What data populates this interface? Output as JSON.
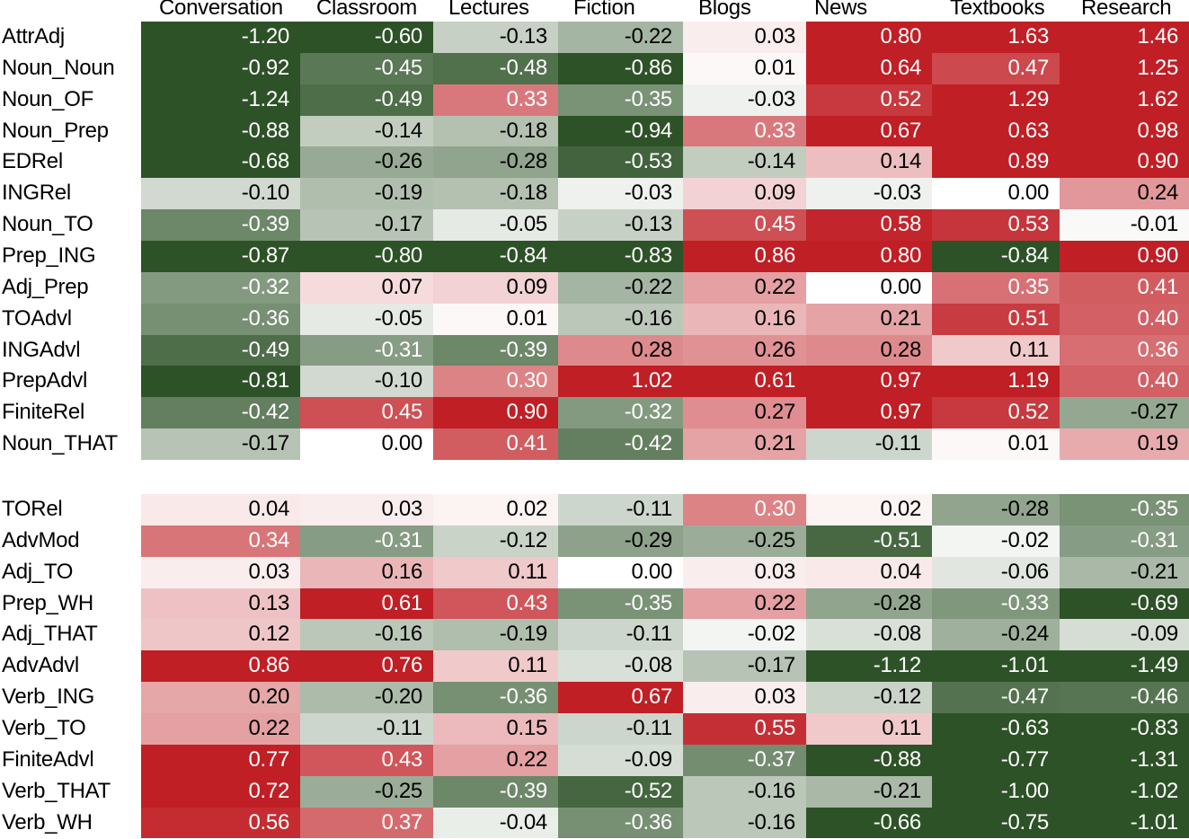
{
  "chart_data": {
    "type": "heatmap",
    "title": "",
    "xlabel": "",
    "ylabel": "",
    "columns": [
      "Conversation",
      "Classroom",
      "Lectures",
      "Fiction",
      "Blogs",
      "News",
      "Textbooks",
      "Research"
    ],
    "color_scale": {
      "negative": "#2d5227",
      "zero": "#ffffff",
      "positive": "#c01f25",
      "saturation": 0.6
    },
    "groups": [
      {
        "rows": [
          {
            "label": "AttrAdj",
            "values": [
              -1.2,
              -0.6,
              -0.13,
              -0.22,
              0.03,
              0.8,
              1.63,
              1.46
            ]
          },
          {
            "label": "Noun_Noun",
            "values": [
              -0.92,
              -0.45,
              -0.48,
              -0.86,
              0.01,
              0.64,
              0.47,
              1.25
            ]
          },
          {
            "label": "Noun_OF",
            "values": [
              -1.24,
              -0.49,
              0.33,
              -0.35,
              -0.03,
              0.52,
              1.29,
              1.62
            ]
          },
          {
            "label": "Noun_Prep",
            "values": [
              -0.88,
              -0.14,
              -0.18,
              -0.94,
              0.33,
              0.67,
              0.63,
              0.98
            ]
          },
          {
            "label": "EDRel",
            "values": [
              -0.68,
              -0.26,
              -0.28,
              -0.53,
              -0.14,
              0.14,
              0.89,
              0.9
            ]
          },
          {
            "label": "INGRel",
            "values": [
              -0.1,
              -0.19,
              -0.18,
              -0.03,
              0.09,
              -0.03,
              0.0,
              0.24
            ]
          },
          {
            "label": "Noun_TO",
            "values": [
              -0.39,
              -0.17,
              -0.05,
              -0.13,
              0.45,
              0.58,
              0.53,
              -0.01
            ]
          },
          {
            "label": "Prep_ING",
            "values": [
              -0.87,
              -0.8,
              -0.84,
              -0.83,
              0.86,
              0.8,
              -0.84,
              0.9
            ]
          },
          {
            "label": "Adj_Prep",
            "values": [
              -0.32,
              0.07,
              0.09,
              -0.22,
              0.22,
              0.0,
              0.35,
              0.41
            ]
          },
          {
            "label": "TOAdvl",
            "values": [
              -0.36,
              -0.05,
              0.01,
              -0.16,
              0.16,
              0.21,
              0.51,
              0.4
            ]
          },
          {
            "label": "INGAdvl",
            "values": [
              -0.49,
              -0.31,
              -0.39,
              0.28,
              0.26,
              0.28,
              0.11,
              0.36
            ]
          },
          {
            "label": "PrepAdvl",
            "values": [
              -0.81,
              -0.1,
              0.3,
              1.02,
              0.61,
              0.97,
              1.19,
              0.4
            ]
          },
          {
            "label": "FiniteRel",
            "values": [
              -0.42,
              0.45,
              0.9,
              -0.32,
              0.27,
              0.97,
              0.52,
              -0.27
            ]
          },
          {
            "label": "Noun_THAT",
            "values": [
              -0.17,
              0.0,
              0.41,
              -0.42,
              0.21,
              -0.11,
              0.01,
              0.19
            ]
          }
        ]
      },
      {
        "rows": [
          {
            "label": "TORel",
            "values": [
              0.04,
              0.03,
              0.02,
              -0.11,
              0.3,
              0.02,
              -0.28,
              -0.35
            ]
          },
          {
            "label": "AdvMod",
            "values": [
              0.34,
              -0.31,
              -0.12,
              -0.29,
              -0.25,
              -0.51,
              -0.02,
              -0.31
            ]
          },
          {
            "label": "Adj_TO",
            "values": [
              0.03,
              0.16,
              0.11,
              0.0,
              0.03,
              0.04,
              -0.06,
              -0.21
            ]
          },
          {
            "label": "Prep_WH",
            "values": [
              0.13,
              0.61,
              0.43,
              -0.35,
              0.22,
              -0.28,
              -0.33,
              -0.69
            ]
          },
          {
            "label": "Adj_THAT",
            "values": [
              0.12,
              -0.16,
              -0.19,
              -0.11,
              -0.02,
              -0.08,
              -0.24,
              -0.09
            ]
          },
          {
            "label": "AdvAdvl",
            "values": [
              0.86,
              0.76,
              0.11,
              -0.08,
              -0.17,
              -1.12,
              -1.01,
              -1.49
            ]
          },
          {
            "label": "Verb_ING",
            "values": [
              0.2,
              -0.2,
              -0.36,
              0.67,
              0.03,
              -0.12,
              -0.47,
              -0.46
            ]
          },
          {
            "label": "Verb_TO",
            "values": [
              0.22,
              -0.11,
              0.15,
              -0.11,
              0.55,
              0.11,
              -0.63,
              -0.83
            ]
          },
          {
            "label": "FiniteAdvl",
            "values": [
              0.77,
              0.43,
              0.22,
              -0.09,
              -0.37,
              -0.88,
              -0.77,
              -1.31
            ]
          },
          {
            "label": "Verb_THAT",
            "values": [
              0.72,
              -0.25,
              -0.39,
              -0.52,
              -0.16,
              -0.21,
              -1.0,
              -1.02
            ]
          },
          {
            "label": "Verb_WH",
            "values": [
              0.56,
              0.37,
              -0.04,
              -0.36,
              -0.16,
              -0.66,
              -0.75,
              -1.01
            ]
          }
        ]
      }
    ],
    "legend": null,
    "grid": false
  }
}
